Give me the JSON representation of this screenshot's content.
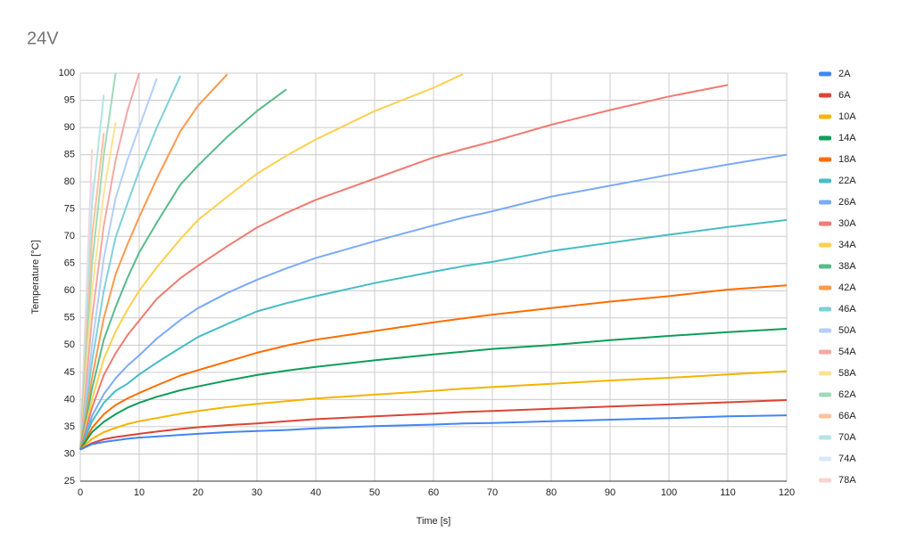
{
  "chart_data": {
    "type": "line",
    "title": "24V",
    "xlabel": "Time [s]",
    "ylabel": "Temperature [°C]",
    "x": [
      0,
      2,
      4,
      6,
      8,
      10,
      13,
      17,
      20,
      25,
      30,
      35,
      40,
      50,
      60,
      65,
      70,
      80,
      90,
      100,
      110,
      120
    ],
    "xlim": [
      0,
      120
    ],
    "xticks": [
      0,
      10,
      20,
      30,
      40,
      50,
      60,
      70,
      80,
      90,
      100,
      110,
      120
    ],
    "ylim": [
      25,
      100
    ],
    "yticks": [
      25,
      30,
      35,
      40,
      45,
      50,
      55,
      60,
      65,
      70,
      75,
      80,
      85,
      90,
      95,
      100
    ],
    "grid": true,
    "legend": "right",
    "series": [
      {
        "name": "2A",
        "color": "#4285f4",
        "values": [
          30.8,
          31.8,
          32.2,
          32.5,
          32.8,
          33,
          33.2,
          33.5,
          33.7,
          34,
          34.2,
          34.4,
          34.7,
          35.1,
          35.4,
          35.6,
          35.7,
          36,
          36.3,
          36.6,
          36.9,
          37.1
        ]
      },
      {
        "name": "6A",
        "color": "#db4437",
        "values": [
          30.8,
          32,
          32.7,
          33.1,
          33.4,
          33.7,
          34.1,
          34.6,
          34.9,
          35.3,
          35.6,
          36,
          36.4,
          36.9,
          37.4,
          37.7,
          37.9,
          38.3,
          38.7,
          39.1,
          39.5,
          39.9
        ]
      },
      {
        "name": "10A",
        "color": "#f4b400",
        "values": [
          30.8,
          32.8,
          34,
          34.8,
          35.5,
          36,
          36.6,
          37.4,
          37.9,
          38.6,
          39.2,
          39.7,
          40.2,
          40.9,
          41.6,
          42,
          42.3,
          42.9,
          43.5,
          44,
          44.6,
          45.2
        ]
      },
      {
        "name": "14A",
        "color": "#0f9d58",
        "values": [
          30.8,
          34,
          35.9,
          37.3,
          38.5,
          39.4,
          40.5,
          41.7,
          42.4,
          43.5,
          44.5,
          45.3,
          46,
          47.2,
          48.3,
          48.8,
          49.3,
          50,
          50.9,
          51.7,
          52.4,
          53
        ]
      },
      {
        "name": "18A",
        "color": "#ff6d01",
        "values": [
          30.8,
          34.8,
          37.3,
          39,
          40.2,
          41.2,
          42.6,
          44.4,
          45.4,
          47,
          48.6,
          49.9,
          51,
          52.6,
          54.2,
          54.9,
          55.6,
          56.8,
          58,
          59,
          60.2,
          61
        ]
      },
      {
        "name": "22A",
        "color": "#46bdc6",
        "values": [
          30.8,
          36,
          39.4,
          41.6,
          42.9,
          44.6,
          46.8,
          49.5,
          51.5,
          53.9,
          56.2,
          57.7,
          59,
          61.4,
          63.5,
          64.5,
          65.3,
          67.3,
          68.8,
          70.3,
          71.7,
          73
        ]
      },
      {
        "name": "26A",
        "color": "#7baaf7",
        "values": [
          30.8,
          37,
          41,
          43.9,
          46.2,
          48.1,
          51.2,
          54.6,
          56.8,
          59.6,
          62,
          64.1,
          66,
          69.1,
          72,
          73.4,
          74.6,
          77.3,
          79.3,
          81.3,
          83.2,
          85
        ]
      },
      {
        "name": "30A",
        "color": "#f07b72",
        "values": [
          30.8,
          38.5,
          44.5,
          48.5,
          51.8,
          54.5,
          58.5,
          62.3,
          64.6,
          68.2,
          71.6,
          74.3,
          76.7,
          80.6,
          84.5,
          86,
          87.4,
          90.5,
          93.2,
          95.7,
          97.8,
          null
        ]
      },
      {
        "name": "34A",
        "color": "#fcd04f",
        "values": [
          30.8,
          40,
          47.5,
          52.5,
          56.5,
          60,
          64.3,
          69.5,
          73,
          77.3,
          81.5,
          84.8,
          87.8,
          93,
          97.3,
          99.8,
          null,
          null,
          null,
          null,
          null,
          null
        ]
      },
      {
        "name": "38A",
        "color": "#57bb8a",
        "values": [
          30.8,
          42,
          51,
          57,
          62.3,
          67,
          72.5,
          79.5,
          83,
          88.3,
          93,
          97,
          null,
          null,
          null,
          null,
          null,
          null,
          null,
          null,
          null,
          null
        ]
      },
      {
        "name": "42A",
        "color": "#ff994d",
        "values": [
          30.8,
          44,
          55,
          63,
          68.5,
          73.5,
          80.6,
          89.3,
          94,
          99.8,
          null,
          null,
          null,
          null,
          null,
          null,
          null,
          null,
          null,
          null,
          null,
          null
        ]
      },
      {
        "name": "46A",
        "color": "#7ed1d7",
        "values": [
          30.8,
          47,
          60,
          69.8,
          76,
          82,
          90,
          99.5,
          null,
          null,
          null,
          null,
          null,
          null,
          null,
          null,
          null,
          null,
          null,
          null,
          null,
          null
        ]
      },
      {
        "name": "50A",
        "color": "#b3cefb",
        "values": [
          30.8,
          50,
          66,
          77,
          84,
          90,
          99,
          null,
          null,
          null,
          null,
          null,
          null,
          null,
          null,
          null,
          null,
          null,
          null,
          null,
          null,
          null
        ]
      },
      {
        "name": "54A",
        "color": "#f4a8a2",
        "values": [
          30.8,
          55,
          72,
          84,
          93,
          100,
          null,
          null,
          null,
          null,
          null,
          null,
          null,
          null,
          null,
          null,
          null,
          null,
          null,
          null,
          null,
          null
        ]
      },
      {
        "name": "58A",
        "color": "#fde293",
        "values": [
          30.8,
          60,
          78,
          91,
          null,
          null,
          null,
          null,
          null,
          null,
          null,
          null,
          null,
          null,
          null,
          null,
          null,
          null,
          null,
          null,
          null,
          null
        ]
      },
      {
        "name": "62A",
        "color": "#a2d9b8",
        "values": [
          30.8,
          65,
          85,
          100,
          null,
          null,
          null,
          null,
          null,
          null,
          null,
          null,
          null,
          null,
          null,
          null,
          null,
          null,
          null,
          null,
          null,
          null
        ]
      },
      {
        "name": "66A",
        "color": "#ffc09a",
        "values": [
          30.8,
          70,
          89,
          null,
          null,
          null,
          null,
          null,
          null,
          null,
          null,
          null,
          null,
          null,
          null,
          null,
          null,
          null,
          null,
          null,
          null,
          null
        ]
      },
      {
        "name": "70A",
        "color": "#b5e3e7",
        "values": [
          30.8,
          76,
          96,
          null,
          null,
          null,
          null,
          null,
          null,
          null,
          null,
          null,
          null,
          null,
          null,
          null,
          null,
          null,
          null,
          null,
          null,
          null
        ]
      },
      {
        "name": "74A",
        "color": "#d9e7fd",
        "values": [
          30.8,
          80,
          null,
          null,
          null,
          null,
          null,
          null,
          null,
          null,
          null,
          null,
          null,
          null,
          null,
          null,
          null,
          null,
          null,
          null,
          null,
          null
        ]
      },
      {
        "name": "78A",
        "color": "#f9d3d0",
        "values": [
          30.8,
          86,
          null,
          null,
          null,
          null,
          null,
          null,
          null,
          null,
          null,
          null,
          null,
          null,
          null,
          null,
          null,
          null,
          null,
          null,
          null,
          null
        ]
      }
    ]
  }
}
